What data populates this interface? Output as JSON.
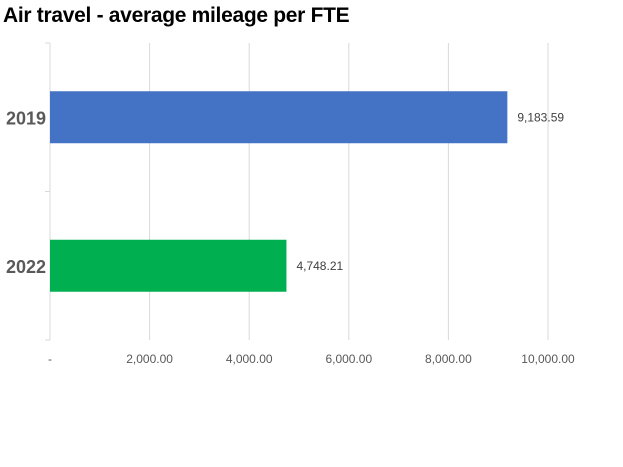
{
  "chart_data": {
    "type": "bar",
    "orientation": "horizontal",
    "title": "Air travel - average mileage per FTE",
    "categories": [
      "2019",
      "2022"
    ],
    "values": [
      9183.59,
      4748.21
    ],
    "data_labels": [
      "9,183.59",
      "4,748.21"
    ],
    "bar_colors": [
      "#4472C4",
      "#00B050"
    ],
    "xlim": [
      0,
      10000
    ],
    "x_ticks": [
      0,
      2000,
      4000,
      6000,
      8000,
      10000
    ],
    "x_tick_labels": [
      "-",
      "2,000.00",
      "4,000.00",
      "6,000.00",
      "8,000.00",
      "10,000.00"
    ],
    "xlabel": "",
    "ylabel": "",
    "grid": true,
    "gridline_color": "#D9D9D9",
    "legend": "none"
  }
}
